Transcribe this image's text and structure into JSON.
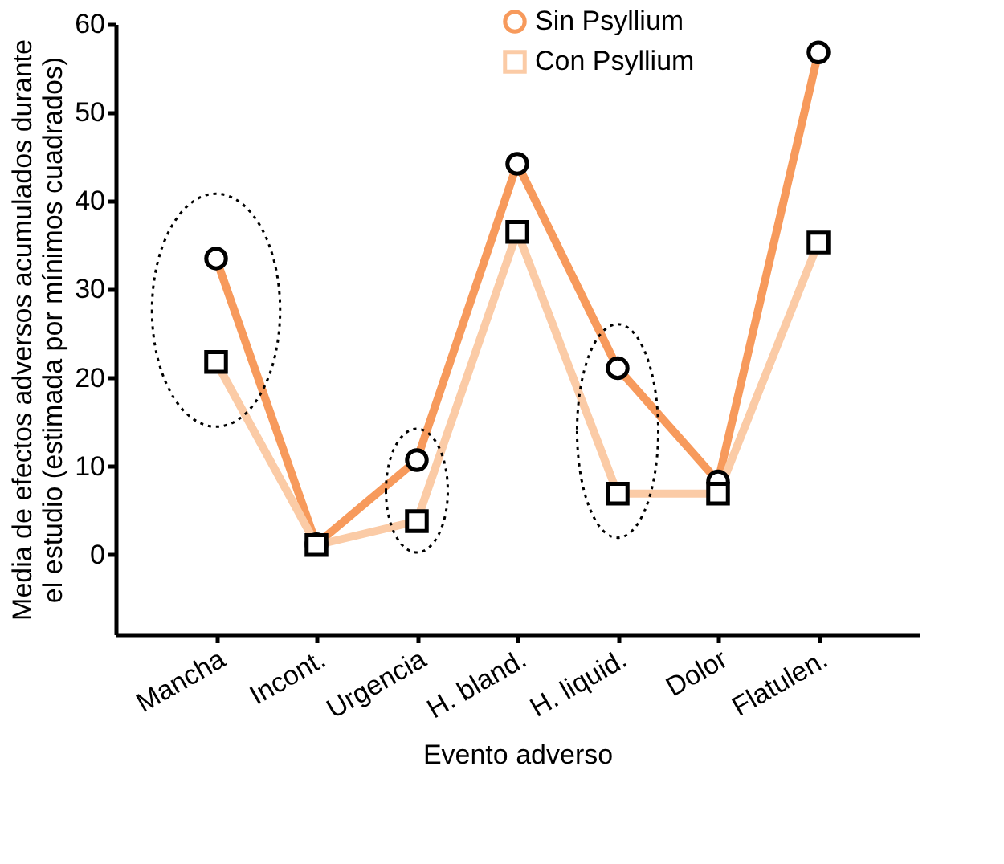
{
  "chart_data": {
    "type": "line",
    "xlabel": "Evento adverso",
    "ylabel": "Media de efectos adversos acumulados durante\nel estudio (estimada por mínimos cuadrados)",
    "categories": [
      "Mancha",
      "Incont.",
      "Urgencia",
      "H. bland.",
      "H. liquid.",
      "Dolor",
      "Flatulen."
    ],
    "series": [
      {
        "name": "Sin Psyllium",
        "color": "#f79a5c",
        "marker": "circle",
        "values": [
          33.5,
          1.2,
          10.7,
          44.2,
          21.1,
          8.3,
          56.8
        ]
      },
      {
        "name": "Con Psyllium",
        "color": "#fbcba6",
        "marker": "square",
        "values": [
          21.8,
          1.1,
          3.8,
          36.5,
          6.9,
          6.9,
          35.3
        ]
      }
    ],
    "ylim": [
      -9,
      60
    ],
    "yticks": [
      0,
      10,
      20,
      30,
      40,
      50,
      60
    ],
    "grid": false,
    "legend": "top",
    "line_style": "solid"
  }
}
